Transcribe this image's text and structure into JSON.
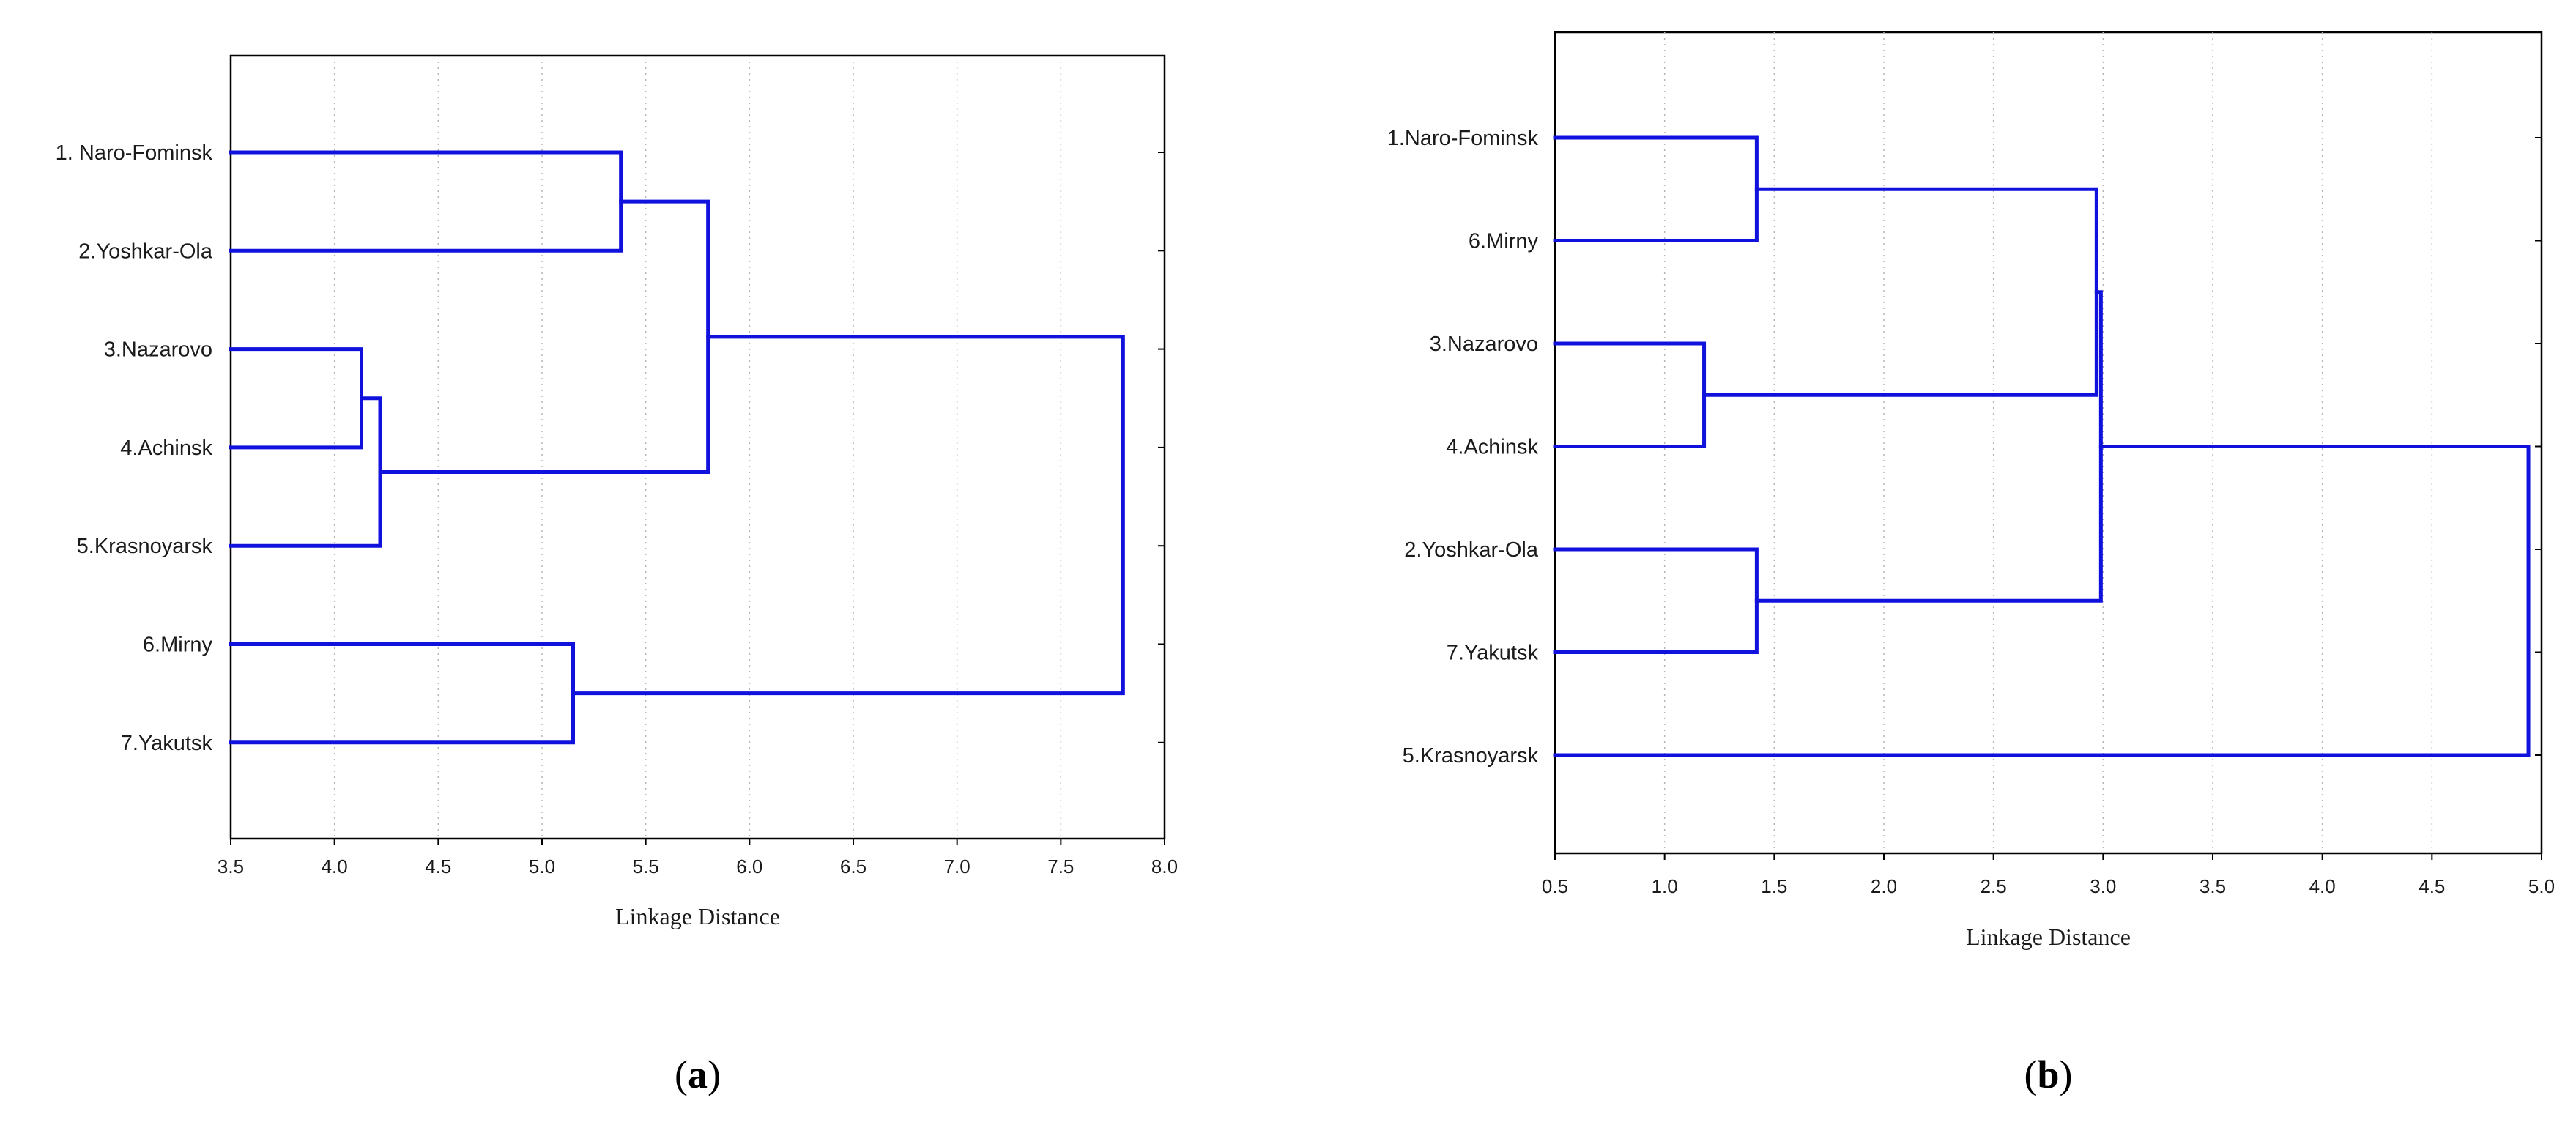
{
  "colors": {
    "link": "#1111dd",
    "frame": "#000000",
    "grid": "#b5b5b5"
  },
  "chart_data": [
    {
      "type": "dendrogram",
      "panel_label": "(a)",
      "xlabel": "Linkage Distance",
      "xlim": [
        3.5,
        8.0
      ],
      "x_ticks": [
        3.5,
        4.0,
        4.5,
        5.0,
        5.5,
        6.0,
        6.5,
        7.0,
        7.5,
        8.0
      ],
      "x_tick_labels": [
        "3.5",
        "4.0",
        "4.5",
        "5.0",
        "5.5",
        "6.0",
        "6.5",
        "7.0",
        "7.5",
        "8.0"
      ],
      "grid": true,
      "leaves": [
        "1. Naro-Fominsk",
        "2.Yoshkar-Ola",
        "3.Nazarovo",
        "4.Achinsk",
        "5.Krasnoyarsk",
        "6.Mirny",
        "7.Yakutsk"
      ],
      "merges": [
        {
          "left": "L2",
          "right": "L3",
          "distance": 4.13
        },
        {
          "left": "N0",
          "right": "L4",
          "distance": 4.22
        },
        {
          "left": "L0",
          "right": "L1",
          "distance": 5.38
        },
        {
          "left": "L5",
          "right": "L6",
          "distance": 5.15
        },
        {
          "left": "N2",
          "right": "N1",
          "distance": 5.8
        },
        {
          "left": "N4",
          "right": "N3",
          "distance": 7.8
        }
      ]
    },
    {
      "type": "dendrogram",
      "panel_label": "(b)",
      "xlabel": "Linkage Distance",
      "xlim": [
        0.5,
        5.0
      ],
      "x_ticks": [
        0.5,
        1.0,
        1.5,
        2.0,
        2.5,
        3.0,
        3.5,
        4.0,
        4.5,
        5.0
      ],
      "x_tick_labels": [
        "0.5",
        "1.0",
        "1.5",
        "2.0",
        "2.5",
        "3.0",
        "3.5",
        "4.0",
        "4.5",
        "5.0"
      ],
      "grid": true,
      "leaves": [
        "1.Naro-Fominsk",
        "6.Mirny",
        "3.Nazarovo",
        "4.Achinsk",
        "2.Yoshkar-Ola",
        "7.Yakutsk",
        "5.Krasnoyarsk"
      ],
      "merges": [
        {
          "left": "L0",
          "right": "L1",
          "distance": 1.42
        },
        {
          "left": "L2",
          "right": "L3",
          "distance": 1.18
        },
        {
          "left": "L4",
          "right": "L5",
          "distance": 1.42
        },
        {
          "left": "N0",
          "right": "N1",
          "distance": 2.97
        },
        {
          "left": "N3",
          "right": "N2",
          "distance": 2.99
        },
        {
          "left": "N4",
          "right": "L6",
          "distance": 4.94
        }
      ]
    }
  ]
}
